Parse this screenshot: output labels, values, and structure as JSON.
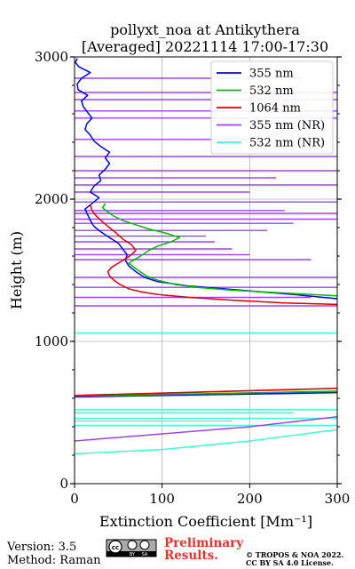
{
  "title_line1": "pollyxt_noa at Antikythera",
  "title_line2": "[Averaged] 20221114 17:00-17:30",
  "footer": {
    "version": "Version: 3.5",
    "method": "Method: Raman",
    "cc_badge": [
      "BY",
      "SA"
    ],
    "preliminary_line1": "Preliminary",
    "preliminary_line2": "Results.",
    "copyright_line1": "© TROPOS & NOA 2022.",
    "copyright_line2": "CC BY SA 4.0 License."
  },
  "chart_data": {
    "type": "line",
    "orientation": "vertical-profile",
    "xlabel": "Extinction Coefficient [Mm⁻¹]",
    "ylabel": "Height (m)",
    "xlim": [
      0,
      300
    ],
    "ylim": [
      0,
      3000
    ],
    "x_ticks": [
      0,
      100,
      200,
      300
    ],
    "y_ticks": [
      0,
      1000,
      2000,
      3000
    ],
    "grid": true,
    "legend_position": "top-right",
    "series": [
      {
        "name": "355 nm",
        "color": "#0000ff",
        "points": [
          [
            300,
            1300
          ],
          [
            250,
            1330
          ],
          [
            190,
            1360
          ],
          [
            130,
            1390
          ],
          [
            95,
            1420
          ],
          [
            80,
            1450
          ],
          [
            70,
            1490
          ],
          [
            62,
            1530
          ],
          [
            58,
            1570
          ],
          [
            60,
            1610
          ],
          [
            55,
            1650
          ],
          [
            50,
            1690
          ],
          [
            40,
            1730
          ],
          [
            30,
            1770
          ],
          [
            22,
            1810
          ],
          [
            18,
            1850
          ],
          [
            15,
            1890
          ],
          [
            12,
            1930
          ],
          [
            20,
            1970
          ],
          [
            28,
            2010
          ],
          [
            18,
            2050
          ],
          [
            22,
            2090
          ],
          [
            30,
            2130
          ],
          [
            28,
            2170
          ],
          [
            35,
            2210
          ],
          [
            40,
            2250
          ],
          [
            35,
            2290
          ],
          [
            40,
            2330
          ],
          [
            30,
            2370
          ],
          [
            22,
            2410
          ],
          [
            18,
            2450
          ],
          [
            12,
            2490
          ],
          [
            14,
            2530
          ],
          [
            20,
            2570
          ],
          [
            15,
            2610
          ],
          [
            10,
            2650
          ],
          [
            8,
            2690
          ],
          [
            15,
            2730
          ],
          [
            4,
            2770
          ],
          [
            3,
            2810
          ],
          [
            8,
            2850
          ],
          [
            18,
            2890
          ],
          [
            5,
            2930
          ],
          [
            1,
            2960
          ],
          [
            3,
            2990
          ]
        ]
      },
      {
        "name": "532 nm",
        "color": "#00bb00",
        "points": [
          [
            300,
            1320
          ],
          [
            240,
            1340
          ],
          [
            180,
            1360
          ],
          [
            140,
            1380
          ],
          [
            115,
            1400
          ],
          [
            95,
            1430
          ],
          [
            82,
            1460
          ],
          [
            75,
            1490
          ],
          [
            68,
            1520
          ],
          [
            62,
            1550
          ],
          [
            70,
            1580
          ],
          [
            78,
            1610
          ],
          [
            85,
            1640
          ],
          [
            95,
            1670
          ],
          [
            110,
            1700
          ],
          [
            120,
            1730
          ],
          [
            105,
            1760
          ],
          [
            85,
            1790
          ],
          [
            70,
            1820
          ],
          [
            55,
            1850
          ],
          [
            45,
            1880
          ],
          [
            38,
            1910
          ],
          [
            32,
            1940
          ],
          [
            35,
            1970
          ]
        ]
      },
      {
        "name": "1064 nm",
        "color": "#dd0000",
        "points": [
          [
            300,
            1260
          ],
          [
            240,
            1270
          ],
          [
            180,
            1290
          ],
          [
            130,
            1310
          ],
          [
            95,
            1330
          ],
          [
            75,
            1350
          ],
          [
            62,
            1370
          ],
          [
            52,
            1400
          ],
          [
            45,
            1430
          ],
          [
            40,
            1460
          ],
          [
            38,
            1490
          ],
          [
            42,
            1520
          ],
          [
            50,
            1550
          ],
          [
            58,
            1580
          ],
          [
            65,
            1610
          ],
          [
            70,
            1640
          ],
          [
            65,
            1680
          ],
          [
            55,
            1720
          ],
          [
            48,
            1760
          ],
          [
            40,
            1800
          ],
          [
            32,
            1840
          ],
          [
            25,
            1880
          ],
          [
            20,
            1920
          ],
          [
            18,
            1960
          ]
        ]
      },
      {
        "name": "355 nm (NR)",
        "color": "#a040ff",
        "points": [
          [
            0,
            300
          ],
          [
            100,
            350
          ],
          [
            200,
            400
          ],
          [
            300,
            470
          ]
        ]
      },
      {
        "name": "532 nm (NR)",
        "color": "#40ffd0",
        "points": [
          [
            0,
            210
          ],
          [
            100,
            240
          ],
          [
            200,
            300
          ],
          [
            300,
            380
          ]
        ]
      }
    ],
    "low_lines": [
      {
        "series": "355 nm",
        "points": [
          [
            0,
            610
          ],
          [
            300,
            640
          ]
        ]
      },
      {
        "series": "532 nm",
        "points": [
          [
            0,
            615
          ],
          [
            300,
            650
          ]
        ]
      },
      {
        "series": "1064 nm",
        "points": [
          [
            0,
            620
          ],
          [
            300,
            670
          ]
        ]
      }
    ],
    "nr_spikes_355": [
      [
        1250,
        300
      ],
      [
        1310,
        270
      ],
      [
        1380,
        300
      ],
      [
        1450,
        300
      ],
      [
        1575,
        270
      ],
      [
        1610,
        200
      ],
      [
        1650,
        180
      ],
      [
        1700,
        160
      ],
      [
        1740,
        150
      ],
      [
        1780,
        220
      ],
      [
        1830,
        250
      ],
      [
        1860,
        300
      ],
      [
        1900,
        300
      ],
      [
        1920,
        240
      ],
      [
        1980,
        300
      ],
      [
        2050,
        200
      ],
      [
        2100,
        300
      ],
      [
        2150,
        230
      ],
      [
        2200,
        300
      ],
      [
        2300,
        300
      ],
      [
        2420,
        200
      ],
      [
        2570,
        300
      ],
      [
        2620,
        300
      ],
      [
        2700,
        300
      ],
      [
        2750,
        300
      ],
      [
        2850,
        260
      ]
    ],
    "nr_spikes_532": [
      [
        410,
        300
      ],
      [
        440,
        180
      ],
      [
        460,
        300
      ],
      [
        500,
        250
      ],
      [
        520,
        300
      ],
      [
        1060,
        300
      ]
    ]
  }
}
